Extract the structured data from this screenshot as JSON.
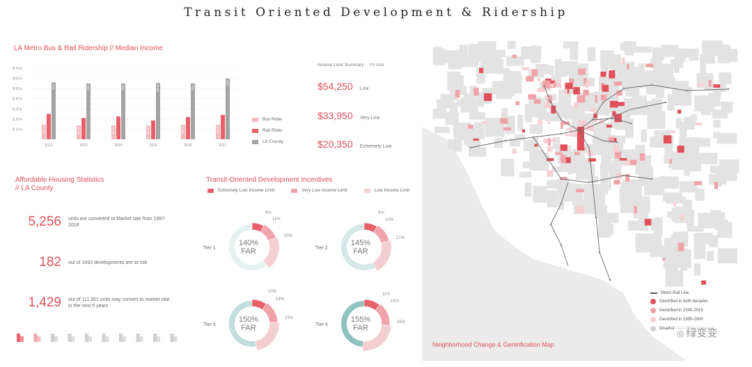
{
  "title": "Transit Oriented Development & Ridership",
  "ridership": {
    "title": "LA Metro Bus & Rail Ridership // Median Income",
    "legend": [
      {
        "label": "Bus Rider",
        "color": "#f2b9be"
      },
      {
        "label": "Rail Rider",
        "color": "#e8606a"
      },
      {
        "label": "LA County",
        "color": "#a3a3a3"
      }
    ]
  },
  "chart_data": {
    "type": "bar",
    "categories": [
      "2012",
      "2013",
      "2014",
      "2015",
      "2016",
      "2017"
    ],
    "series": [
      {
        "name": "Bus Rider",
        "values": [
          14.5,
          13.5,
          13.5,
          13.5,
          14.5,
          14.5
        ]
      },
      {
        "name": "Rail Rider",
        "values": [
          25,
          21,
          22.5,
          18.5,
          22,
          24
        ]
      },
      {
        "name": "LA County",
        "values": [
          56,
          55,
          55,
          55.5,
          55,
          60
        ]
      }
    ],
    "yticks": [
      "$ 10 k",
      "$ 20 k",
      "$ 30 k",
      "$ 40 k",
      "$ 50 k",
      "$ 60 k",
      "$ 70 k"
    ],
    "ylim": [
      0,
      70
    ]
  },
  "income": {
    "title": "Income Limit Summary",
    "note": "*FY 2018",
    "items": [
      {
        "value": "$54,250",
        "label": "Low"
      },
      {
        "value": "$33,950",
        "label": "Very Low"
      },
      {
        "value": "$20,350",
        "label": "Extremely Low"
      }
    ]
  },
  "housing": {
    "title_line1": "Affordable Housing Statistics",
    "title_line2": "// LA County",
    "stats": [
      {
        "number": "5,256",
        "text": "units are converted to Market rate from 1997-2018"
      },
      {
        "number": "182",
        "text": "out of 1692 developments are at risk"
      },
      {
        "number": "1,429",
        "text": "out of 111,351 units may convert to market rate in the next 5 years"
      }
    ]
  },
  "tod": {
    "title": "Transit-Oriented Development Incentives",
    "legend": [
      {
        "label": "Extremely Low Income Limit",
        "color": "#e8606a"
      },
      {
        "label": "Very Low Income Limit",
        "color": "#f0a3a9"
      },
      {
        "label": "Low Income Limit",
        "color": "#f4cfd2"
      }
    ],
    "tiers": [
      {
        "label": "Tier 1",
        "far": "140%",
        "far_label": "FAR",
        "extremely_low": 8,
        "very_low": 11,
        "low": 20,
        "ring_color": "#e6f1f2"
      },
      {
        "label": "Tier 2",
        "far": "145%",
        "far_label": "FAR",
        "extremely_low": 9,
        "very_low": 12,
        "low": 21,
        "ring_color": "#d3e8e7"
      },
      {
        "label": "Tier 3",
        "far": "150%",
        "far_label": "FAR",
        "extremely_low": 10,
        "very_low": 14,
        "low": 23,
        "ring_color": "#c1dedd"
      },
      {
        "label": "Tier 4",
        "far": "155%",
        "far_label": "FAR",
        "extremely_low": 11,
        "very_low": 15,
        "low": 25,
        "ring_color": "#8fc3c0"
      }
    ]
  },
  "map": {
    "title": "Neighborhood Change & Gentrification Map",
    "legend": [
      {
        "label": "Metro Rail Line",
        "type": "line",
        "color": "#555555"
      },
      {
        "label": "Gentrified in both decades",
        "type": "dot",
        "color": "#e0505a"
      },
      {
        "label": "Gentrified in 2000-2015",
        "type": "dot",
        "color": "#f0a3a9"
      },
      {
        "label": "Gentrified in 1990-2000",
        "type": "dot",
        "color": "#f7d0d3"
      },
      {
        "label": "Disadvantaged/Not gentrified",
        "type": "dot",
        "color": "#d3d3d3"
      }
    ],
    "watermark": "绿变变"
  }
}
